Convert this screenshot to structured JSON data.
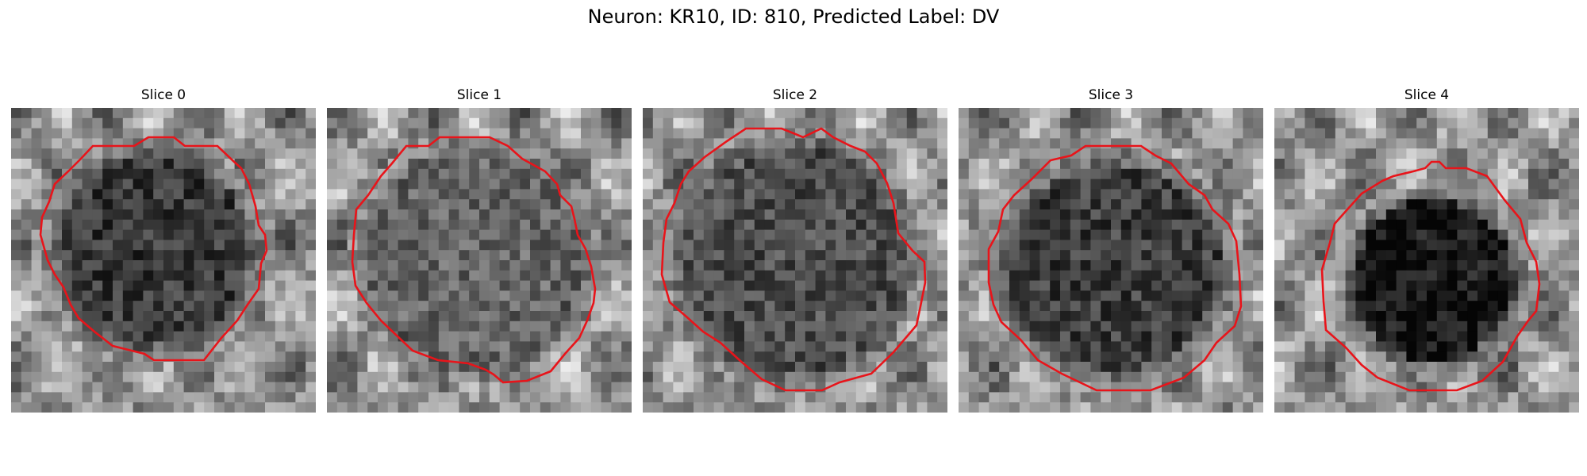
{
  "figure": {
    "title": "Neuron: KR10, ID: 810, Predicted Label: DV"
  },
  "colors": {
    "contour": "#e8141a",
    "background": "#ffffff"
  },
  "panels": [
    {
      "title": "Slice 0",
      "outline": "cell-membrane-contour"
    },
    {
      "title": "Slice 1",
      "outline": "cell-membrane-contour"
    },
    {
      "title": "Slice 2",
      "outline": "cell-membrane-contour"
    },
    {
      "title": "Slice 3",
      "outline": "cell-membrane-contour"
    },
    {
      "title": "Slice 4",
      "outline": "cell-membrane-contour"
    }
  ]
}
